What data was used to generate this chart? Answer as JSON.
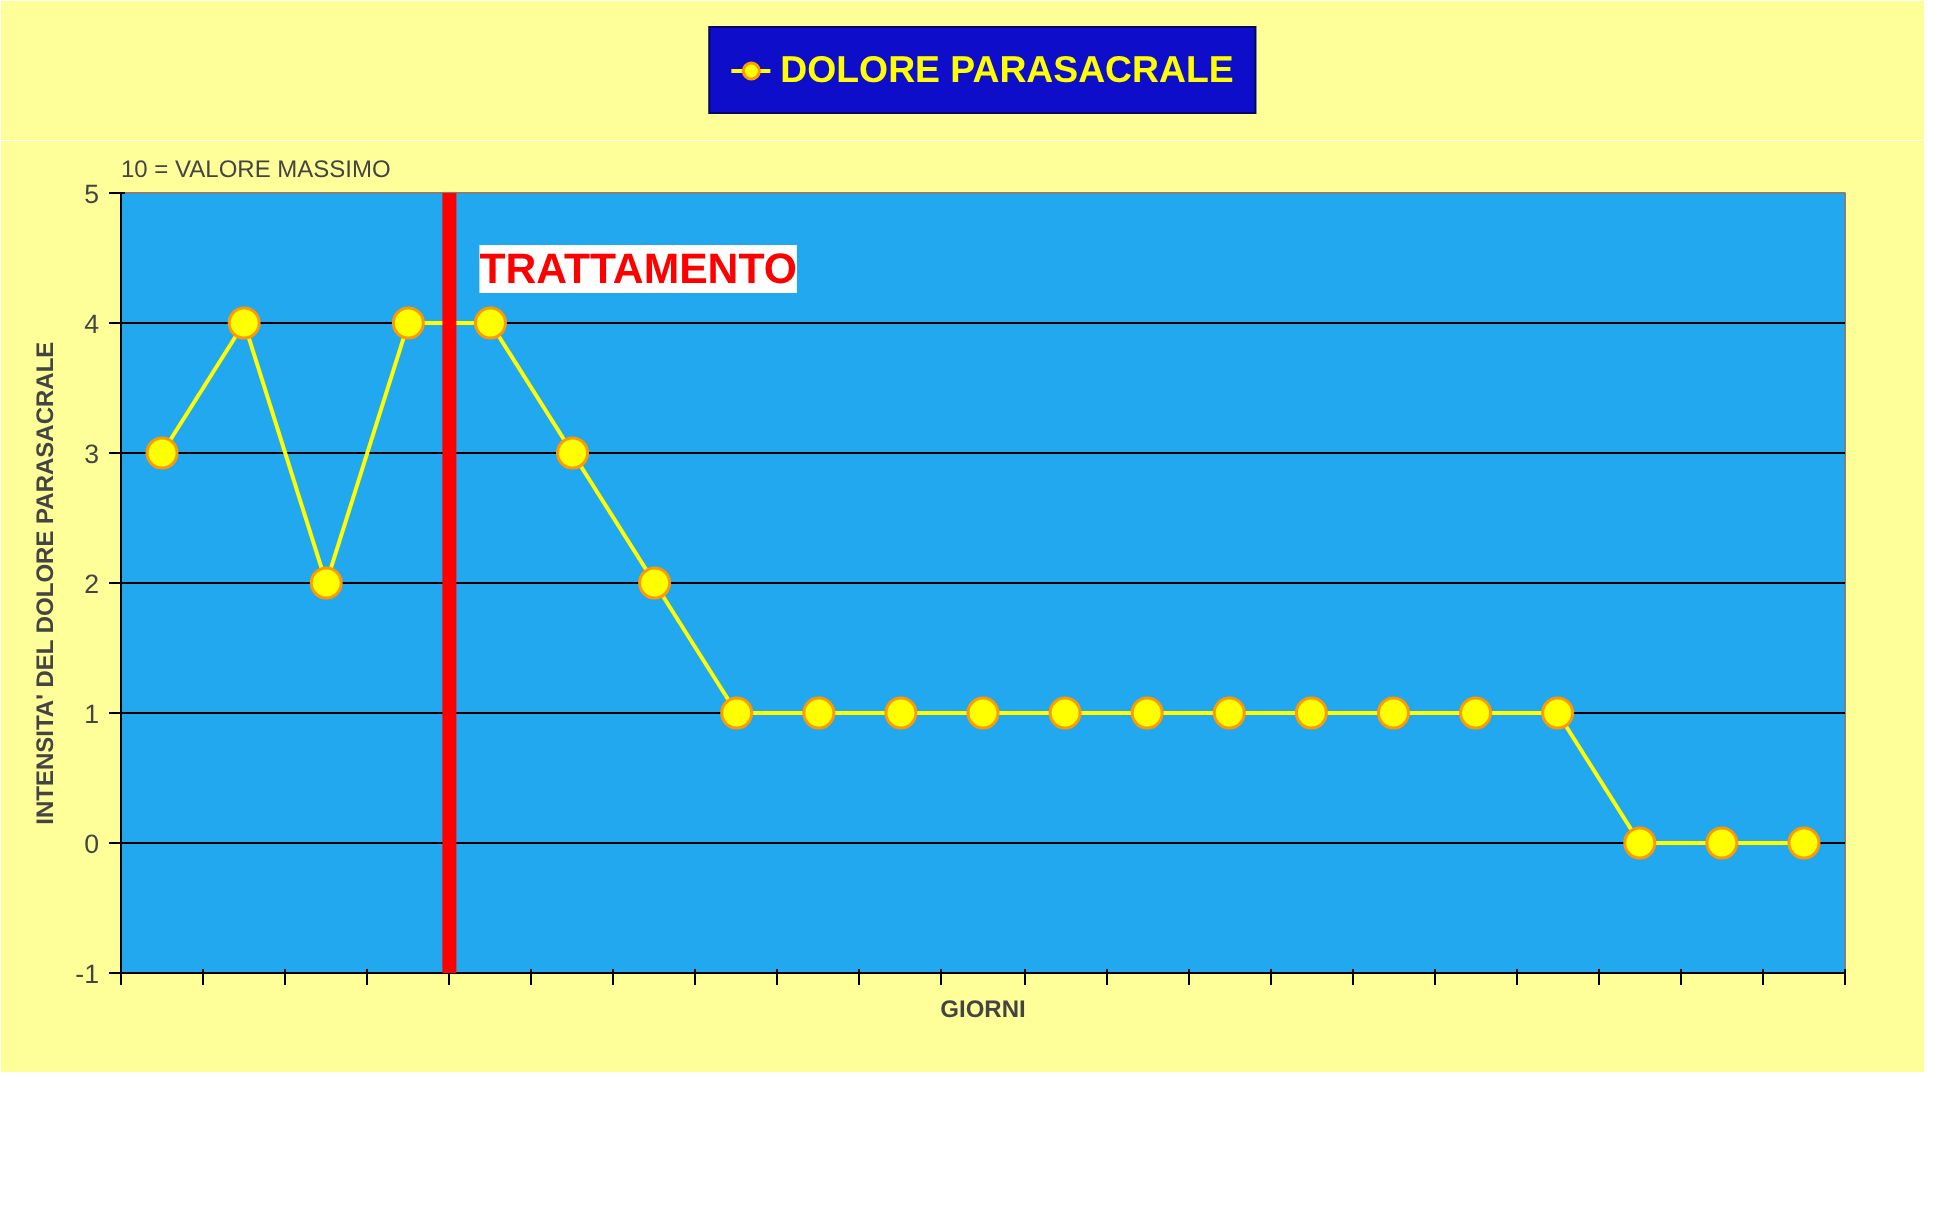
{
  "chart_data": {
    "type": "line",
    "categories": [
      null,
      null,
      null,
      null,
      null,
      null,
      null,
      null,
      null,
      null,
      null,
      null,
      null,
      null,
      null,
      null,
      null,
      null,
      null,
      null,
      null
    ],
    "series": [
      {
        "name": "DOLORE PARASACRALE",
        "color": "#ffff00",
        "values": [
          3,
          4,
          2,
          4,
          4,
          3,
          2,
          1,
          1,
          1,
          1,
          1,
          1,
          1,
          1,
          1,
          1,
          1,
          0,
          0,
          0
        ]
      }
    ],
    "ylim": [
      -1,
      5
    ],
    "yticks": [
      -1,
      0,
      1,
      2,
      3,
      4,
      5
    ],
    "xlabel": "GIORNI",
    "ylabel": "INTENSITA' DEL DOLORE PARASACRALE",
    "annotations": [
      "10 = VALORE MASSIMO",
      "TRATTAMENTO"
    ],
    "grid": "y",
    "legend": "top",
    "marker": "circle",
    "tick_labels": "y"
  }
}
